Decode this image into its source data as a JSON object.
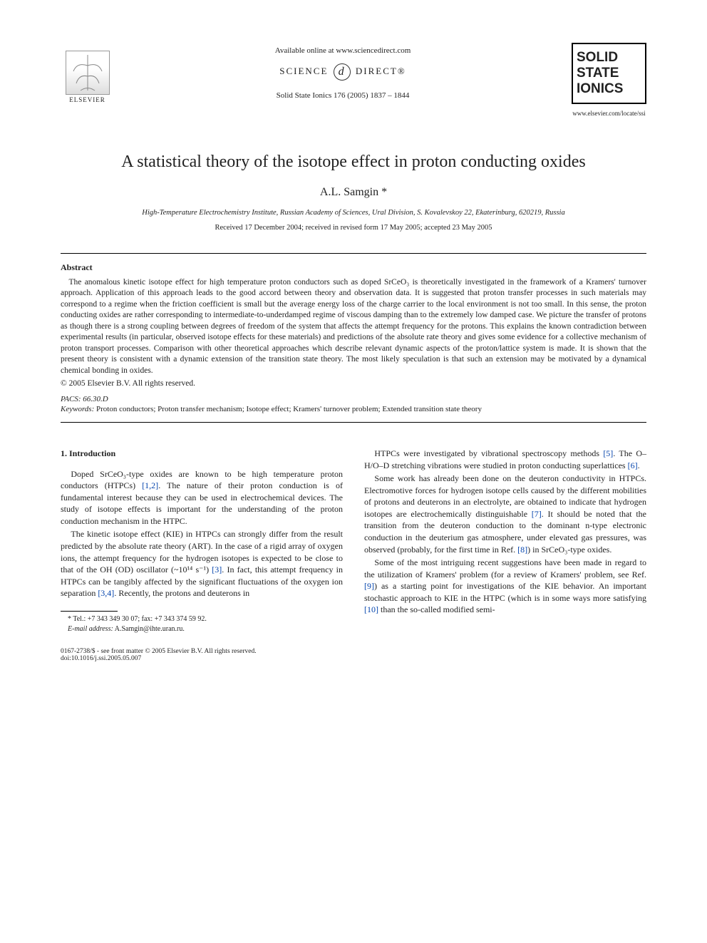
{
  "header": {
    "publisher_logo_text": "ELSEVIER",
    "available_text": "Available online at www.sciencedirect.com",
    "sd_left": "SCIENCE",
    "sd_d": "d",
    "sd_right": "DIRECT®",
    "citation": "Solid State Ionics 176 (2005) 1837 – 1844",
    "journal_lines": [
      "SOLID",
      "STATE",
      "IONICS"
    ],
    "journal_url": "www.elsevier.com/locate/ssi"
  },
  "title": "A statistical theory of the isotope effect in proton conducting oxides",
  "author": "A.L. Samgin *",
  "affiliation": "High-Temperature Electrochemistry Institute, Russian Academy of Sciences, Ural Division, S. Kovalevskoy 22, Ekaterinburg, 620219, Russia",
  "dates": "Received 17 December 2004; received in revised form 17 May 2005; accepted 23 May 2005",
  "abstract": {
    "heading": "Abstract",
    "text": "The anomalous kinetic isotope effect for high temperature proton conductors such as doped SrCeO₃ is theoretically investigated in the framework of a Kramers' turnover approach. Application of this approach leads to the good accord between theory and observation data. It is suggested that proton transfer processes in such materials may correspond to a regime when the friction coefficient is small but the average energy loss of the charge carrier to the local environment is not too small. In this sense, the proton conducting oxides are rather corresponding to intermediate-to-underdamped regime of viscous damping than to the extremely low damped case. We picture the transfer of protons as though there is a strong coupling between degrees of freedom of the system that affects the attempt frequency for the protons. This explains the known contradiction between experimental results (in particular, observed isotope effects for these materials) and predictions of the absolute rate theory and gives some evidence for a collective mechanism of proton transport processes. Comparison with other theoretical approaches which describe relevant dynamic aspects of the proton/lattice system is made. It is shown that the present theory is consistent with a dynamic extension of the transition state theory. The most likely speculation is that such an extension may be motivated by a dynamical chemical bonding in oxides.",
    "copyright": "© 2005 Elsevier B.V. All rights reserved."
  },
  "pacs": {
    "label": "PACS:",
    "value": "66.30.D"
  },
  "keywords": {
    "label": "Keywords:",
    "value": "Proton conductors; Proton transfer mechanism; Isotope effect; Kramers' turnover problem; Extended transition state theory"
  },
  "body": {
    "section_heading": "1. Introduction",
    "left_col": [
      "Doped SrCeO₃-type oxides are known to be high temperature proton conductors (HTPCs) [1,2]. The nature of their proton conduction is of fundamental interest because they can be used in electrochemical devices. The study of isotope effects is important for the understanding of the proton conduction mechanism in the HTPC.",
      "The kinetic isotope effect (KIE) in HTPCs can strongly differ from the result predicted by the absolute rate theory (ART). In the case of a rigid array of oxygen ions, the attempt frequency for the hydrogen isotopes is expected to be close to that of the OH (OD) oscillator (~10¹⁴ s⁻¹) [3]. In fact, this attempt frequency in HTPCs can be tangibly affected by the significant fluctuations of the oxygen ion separation [3,4]. Recently, the protons and deuterons in"
    ],
    "right_col": [
      "HTPCs were investigated by vibrational spectroscopy methods [5]. The O–H/O–D stretching vibrations were studied in proton conducting superlattices [6].",
      "Some work has already been done on the deuteron conductivity in HTPCs. Electromotive forces for hydrogen isotope cells caused by the different mobilities of protons and deuterons in an electrolyte, are obtained to indicate that hydrogen isotopes are electrochemically distinguishable [7]. It should be noted that the transition from the deuteron conduction to the dominant n-type electronic conduction in the deuterium gas atmosphere, under elevated gas pressures, was observed (probably, for the first time in Ref. [8]) in SrCeO₃-type oxides.",
      "Some of the most intriguing recent suggestions have been made in regard to the utilization of Kramers' problem (for a review of Kramers' problem, see Ref. [9]) as a starting point for investigations of the KIE behavior. An important stochastic approach to KIE in the HTPC (which is in some ways more satisfying [10] than the so-called modified semi-"
    ]
  },
  "footnotes": {
    "tel": "* Tel.: +7 343 349 30 07; fax: +7 343 374 59 92.",
    "email_label": "E-mail address:",
    "email": "A.Samgin@ihte.uran.ru."
  },
  "footer": {
    "line1": "0167-2738/$ - see front matter © 2005 Elsevier B.V. All rights reserved.",
    "line2": "doi:10.1016/j.ssi.2005.05.007"
  },
  "refs": [
    "[1,2]",
    "[3]",
    "[3,4]",
    "[5]",
    "[6]",
    "[7]",
    "[8]",
    "[9]",
    "[10]"
  ],
  "colors": {
    "link": "#0645ad",
    "text": "#222222",
    "rule": "#000000",
    "background": "#ffffff"
  },
  "fontsizes": {
    "title": 24,
    "author": 16,
    "affiliation": 10.5,
    "dates": 10.5,
    "abstract_heading": 12,
    "abstract_text": 11.5,
    "body": 12,
    "footnote": 10,
    "footer": 9.5,
    "header_small": 11
  }
}
